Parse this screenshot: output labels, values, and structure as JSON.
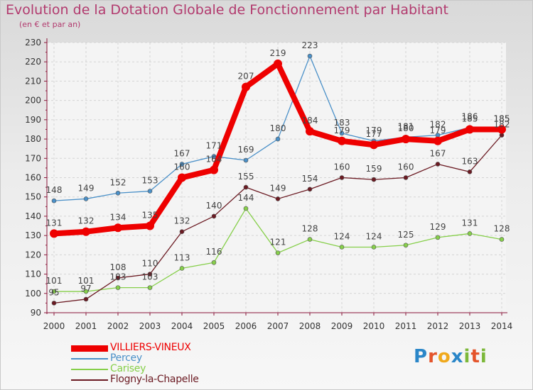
{
  "chart_data": {
    "type": "line",
    "title": "Evolution de la Dotation Globale de Fonctionnement par Habitant",
    "subtitle": "(en € et par an)",
    "xlabel": "",
    "ylabel": "",
    "ylim": [
      90,
      230
    ],
    "ytick_step": 10,
    "grid": true,
    "legend_position": "bottom-left",
    "categories": [
      "2000",
      "2001",
      "2002",
      "2003",
      "2004",
      "2005",
      "2006",
      "2007",
      "2008",
      "2009",
      "2010",
      "2011",
      "2012",
      "2013",
      "2014"
    ],
    "series": [
      {
        "name": "VILLIERS-VINEUX",
        "color": "#ee0000",
        "values": [
          131,
          132,
          134,
          135,
          160,
          164,
          207,
          219,
          184,
          179,
          177,
          180,
          179,
          185,
          185
        ]
      },
      {
        "name": "Percey",
        "color": "#4a90c8",
        "values": [
          148,
          149,
          152,
          153,
          167,
          171,
          169,
          180,
          223,
          183,
          179,
          181,
          182,
          186,
          185
        ]
      },
      {
        "name": "Carisey",
        "color": "#86cf4a",
        "values": [
          101,
          101,
          103,
          103,
          113,
          116,
          144,
          121,
          128,
          124,
          124,
          125,
          129,
          131,
          128
        ]
      },
      {
        "name": "Flogny-la-Chapelle",
        "color": "#6b1a22",
        "values": [
          95,
          97,
          108,
          110,
          132,
          140,
          155,
          149,
          154,
          160,
          159,
          160,
          167,
          163,
          182
        ]
      }
    ]
  },
  "logo": {
    "letters": [
      "P",
      "r",
      "o",
      "x",
      "i",
      "t",
      "i"
    ],
    "colors": [
      "#2a86c8",
      "#e4542b",
      "#f0a91c",
      "#2a86c8",
      "#7cb83a",
      "#e4542b",
      "#7cb83a"
    ]
  }
}
